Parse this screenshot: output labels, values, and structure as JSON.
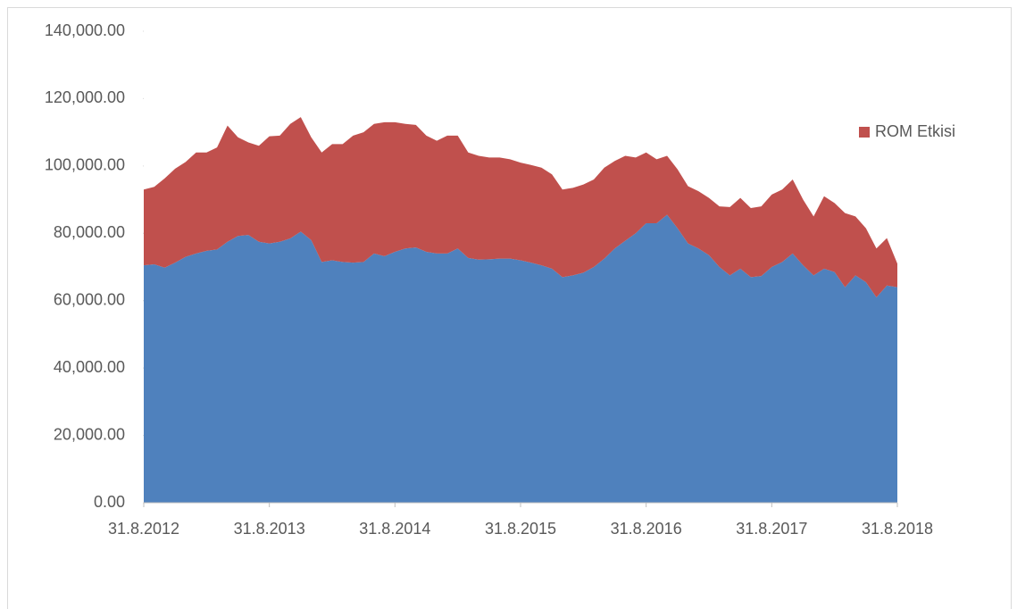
{
  "chart_data": {
    "type": "stacked_area",
    "categories": [
      "31.8.2012",
      null,
      null,
      null,
      null,
      null,
      null,
      null,
      null,
      null,
      null,
      null,
      "31.8.2013",
      null,
      null,
      null,
      null,
      null,
      null,
      null,
      null,
      null,
      null,
      null,
      "31.8.2014",
      null,
      null,
      null,
      null,
      null,
      null,
      null,
      null,
      null,
      null,
      null,
      "31.8.2015",
      null,
      null,
      null,
      null,
      null,
      null,
      null,
      null,
      null,
      null,
      null,
      "31.8.2016",
      null,
      null,
      null,
      null,
      null,
      null,
      null,
      null,
      null,
      null,
      null,
      "31.8.2017",
      null,
      null,
      null,
      null,
      null,
      null,
      null,
      null,
      null,
      null,
      null,
      "31.8.2018"
    ],
    "series": [
      {
        "color": "#4f81bd",
        "values": [
          70500,
          70800,
          69800,
          71300,
          73000,
          74000,
          74800,
          75200,
          77500,
          79200,
          79500,
          77500,
          77000,
          77500,
          78500,
          80500,
          78000,
          71500,
          72000,
          71500,
          71300,
          71500,
          74000,
          73200,
          74500,
          75500,
          75800,
          74500,
          74000,
          74000,
          75500,
          72700,
          72200,
          72300,
          72500,
          72500,
          72000,
          71300,
          70500,
          69500,
          67000,
          67500,
          68300,
          70000,
          72500,
          75500,
          77800,
          80000,
          83000,
          83000,
          85500,
          81500,
          77000,
          75500,
          73500,
          70000,
          67500,
          69500,
          67000,
          67300,
          70000,
          71500,
          74000,
          70500,
          67500,
          69500,
          68500,
          64000,
          67500,
          65500,
          61000,
          64500,
          64000
        ]
      },
      {
        "name": "ROM Etkisi",
        "color": "#c0504d",
        "values": [
          22500,
          23000,
          26500,
          27900,
          28200,
          30000,
          29200,
          30300,
          34500,
          29300,
          27500,
          28500,
          31800,
          31500,
          34000,
          34000,
          30500,
          32500,
          34500,
          35000,
          37700,
          38500,
          38500,
          39800,
          38500,
          37000,
          36400,
          34500,
          33500,
          35000,
          33500,
          31300,
          30800,
          30200,
          30000,
          29500,
          29000,
          29000,
          29000,
          28000,
          26000,
          26000,
          26200,
          26000,
          27000,
          26000,
          25200,
          22500,
          21000,
          19000,
          17500,
          17500,
          17000,
          17000,
          17000,
          18000,
          20300,
          21000,
          20500,
          20700,
          21500,
          21500,
          22000,
          19500,
          17500,
          21500,
          20500,
          22000,
          17500,
          16000,
          14500,
          14100,
          7000
        ]
      }
    ],
    "ylim": [
      0,
      140000
    ],
    "yticks": [
      {
        "value": 0,
        "label": "0.00"
      },
      {
        "value": 20000,
        "label": "20,000.00"
      },
      {
        "value": 40000,
        "label": "40,000.00"
      },
      {
        "value": 60000,
        "label": "60,000.00"
      },
      {
        "value": 80000,
        "label": "80,000.00"
      },
      {
        "value": 100000,
        "label": "100,000.00"
      },
      {
        "value": 120000,
        "label": "120,000.00"
      },
      {
        "value": 140000,
        "label": "140,000.00"
      }
    ],
    "legend_position": "right"
  }
}
